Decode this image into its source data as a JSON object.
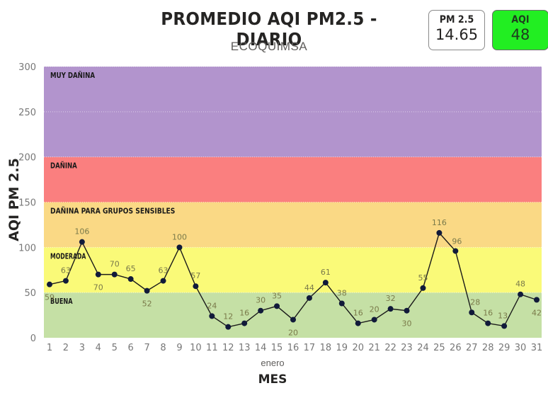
{
  "header": {
    "title": "PROMEDIO AQI PM2.5 - DIARIO",
    "subtitle": "ECOQUIMSA"
  },
  "cards": {
    "pm25": {
      "label": "PM 2.5",
      "value": "14.65"
    },
    "aqi": {
      "label": "AQI",
      "value": "48",
      "color": "#22ee22"
    }
  },
  "chart_data": {
    "type": "line",
    "title": "PROMEDIO AQI PM2.5 - DIARIO",
    "subtitle": "ECOQUIMSA",
    "xlabel": "MES",
    "xsublabel": "enero",
    "ylabel": "AQI PM 2.5",
    "ylim": [
      0,
      300
    ],
    "yticks": [
      0,
      50,
      100,
      150,
      200,
      250,
      300
    ],
    "grid": true,
    "x": [
      1,
      2,
      3,
      4,
      5,
      6,
      7,
      8,
      9,
      10,
      11,
      12,
      13,
      14,
      15,
      16,
      17,
      18,
      19,
      20,
      21,
      22,
      23,
      24,
      25,
      26,
      27,
      28,
      29,
      30,
      31
    ],
    "series": [
      {
        "name": "AQI PM 2.5",
        "color": "#1a1a2e",
        "values": [
          59,
          63,
          106,
          70,
          70,
          65,
          52,
          63,
          100,
          57,
          24,
          12,
          16,
          30,
          35,
          20,
          44,
          61,
          38,
          16,
          20,
          32,
          30,
          55,
          116,
          96,
          28,
          16,
          13,
          48,
          42
        ]
      }
    ],
    "bands": [
      {
        "label": "BUENA",
        "from": 0,
        "to": 50,
        "color": "#c5e0a5"
      },
      {
        "label": "MODERADA",
        "from": 50,
        "to": 100,
        "color": "#fafa78"
      },
      {
        "label": "DAÑINA PARA GRUPOS SENSIBLES",
        "from": 100,
        "to": 150,
        "color": "#fad985"
      },
      {
        "label": "DAÑINA",
        "from": 150,
        "to": 200,
        "color": "#fa7f7f"
      },
      {
        "label": "MUY DAÑINA",
        "from": 200,
        "to": 300,
        "color": "#b294cd"
      }
    ]
  }
}
